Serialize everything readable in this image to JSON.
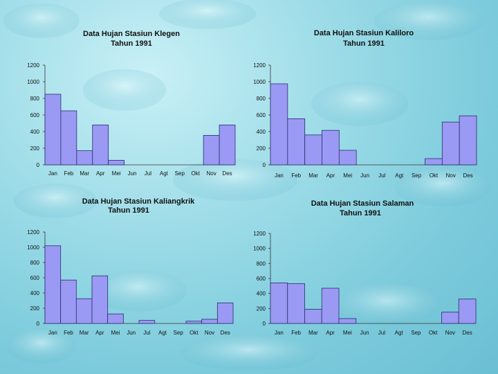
{
  "colors": {
    "bar_fill": "#9a9af5",
    "bar_stroke": "#2b2b6a",
    "background": "#9fdde8"
  },
  "chart_data": [
    {
      "type": "bar",
      "title": "Data Hujan Stasiun Klegen",
      "subtitle": "Tahun 1991",
      "categories": [
        "Jan",
        "Feb",
        "Mar",
        "Apr",
        "Mei",
        "Jun",
        "Jul",
        "Agt",
        "Sep",
        "Okt",
        "Nov",
        "Des"
      ],
      "values": [
        850,
        650,
        170,
        480,
        55,
        0,
        0,
        0,
        0,
        0,
        355,
        480
      ],
      "yticks": [
        "1200",
        "1000",
        "800",
        "600",
        "400",
        "200",
        "0"
      ],
      "ylim": [
        0,
        1200
      ],
      "grid": false
    },
    {
      "type": "bar",
      "title": "Data Hujan Stasiun Kaliloro",
      "subtitle": "Tahun 1991",
      "categories": [
        "Jan",
        "Feb",
        "Mar",
        "Apr",
        "Mei",
        "Jun",
        "Jul",
        "Agt",
        "Sep",
        "Okt",
        "Nov",
        "Des"
      ],
      "values": [
        975,
        555,
        360,
        415,
        175,
        0,
        0,
        0,
        0,
        75,
        515,
        590
      ],
      "yticks": [
        "1200",
        "1000",
        "800",
        "600",
        "400",
        "200",
        "0"
      ],
      "ylim": [
        0,
        1200
      ],
      "grid": false
    },
    {
      "type": "bar",
      "title": "Data Hujan Stasiun Kaliangkrik",
      "subtitle": "Tahun 1991",
      "categories": [
        "Jan",
        "Feb",
        "Mar",
        "Apr",
        "Mei",
        "Jun",
        "Jul",
        "Agt",
        "Sep",
        "Okt",
        "Nov",
        "Des"
      ],
      "values": [
        1020,
        570,
        325,
        625,
        125,
        0,
        40,
        0,
        0,
        30,
        55,
        270
      ],
      "yticks": [
        "1200",
        "1000",
        "800",
        "600",
        "400",
        "200",
        "0"
      ],
      "ylim": [
        0,
        1200
      ],
      "grid": false
    },
    {
      "type": "bar",
      "title": "Data Hujan Stasiun Salaman",
      "subtitle": "Tahun 1991",
      "categories": [
        "Jan",
        "Feb",
        "Mar",
        "Apr",
        "Mei",
        "Jun",
        "Jul",
        "Agt",
        "Sep",
        "Okt",
        "Nov",
        "Des"
      ],
      "values": [
        540,
        530,
        190,
        470,
        65,
        0,
        0,
        0,
        0,
        0,
        150,
        325
      ],
      "yticks": [
        "1200",
        "1000",
        "800",
        "600",
        "400",
        "200",
        "0"
      ],
      "ylim": [
        0,
        1200
      ],
      "grid": false
    }
  ]
}
